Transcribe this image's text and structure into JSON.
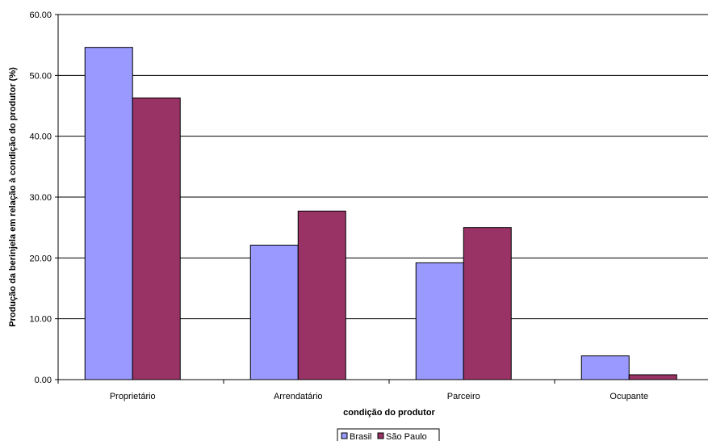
{
  "chart_data": {
    "type": "bar",
    "title": "",
    "xlabel": "condição do produtor",
    "ylabel": "Produção da berinjela em relação à condição do produtor  (%)",
    "categories": [
      "Proprietário",
      "Arrendatário",
      "Parceiro",
      "Ocupante"
    ],
    "series": [
      {
        "name": "Brasil",
        "values": [
          54.6,
          22.1,
          19.2,
          3.9
        ],
        "color": "#9999ff"
      },
      {
        "name": "São Paulo",
        "values": [
          46.3,
          27.7,
          25.0,
          0.8
        ],
        "color": "#993366"
      }
    ],
    "ylim": [
      0,
      60
    ],
    "yticks": [
      "0.00",
      "10.00",
      "20.00",
      "30.00",
      "40.00",
      "50.00",
      "60.00"
    ],
    "grid": true,
    "legend_position": "bottom-center"
  }
}
